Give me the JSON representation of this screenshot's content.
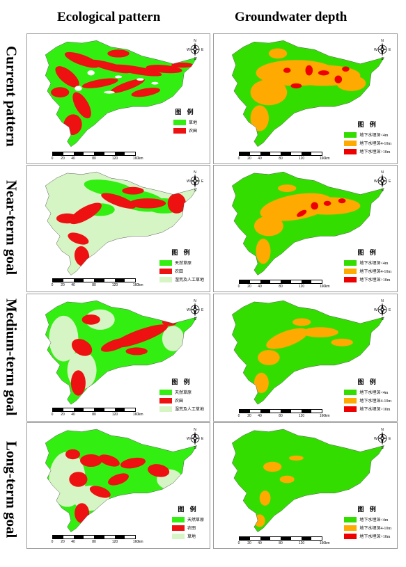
{
  "columns": [
    "Ecological pattern",
    "Groundwater depth"
  ],
  "rows": [
    "Current pattern",
    "Near-term goal",
    "Medium-term goal",
    "Long-term goal"
  ],
  "compass": {
    "n": "N",
    "s": "S",
    "e": "E",
    "w": "W"
  },
  "scale": {
    "ticks": [
      "0",
      "20",
      "40",
      "80",
      "120",
      "160"
    ],
    "unit": "km"
  },
  "legend_title": "图 例",
  "eco_legends": [
    [
      {
        "label": "草地",
        "color": "#33ee11"
      },
      {
        "label": "农田",
        "color": "#ee1111"
      }
    ],
    [
      {
        "label": "天然草原",
        "color": "#33ee11"
      },
      {
        "label": "农田",
        "color": "#ee1111"
      },
      {
        "label": "湿荒及人工草地",
        "color": "#d6f5c4"
      }
    ],
    [
      {
        "label": "天然草原",
        "color": "#33ee11"
      },
      {
        "label": "农田",
        "color": "#ee1111"
      },
      {
        "label": "湿荒及人工草地",
        "color": "#d6f5c4"
      }
    ],
    [
      {
        "label": "天然草原",
        "color": "#33ee11"
      },
      {
        "label": "农田",
        "color": "#ee1111"
      },
      {
        "label": "草地",
        "color": "#d6f5c4"
      }
    ]
  ],
  "gw_legend": [
    {
      "label": "地下水埋深<4m",
      "color": "#33dd00"
    },
    {
      "label": "地下水埋深4-10m",
      "color": "#ffaa00"
    },
    {
      "label": "地下水埋深>10m",
      "color": "#ee0000"
    }
  ]
}
